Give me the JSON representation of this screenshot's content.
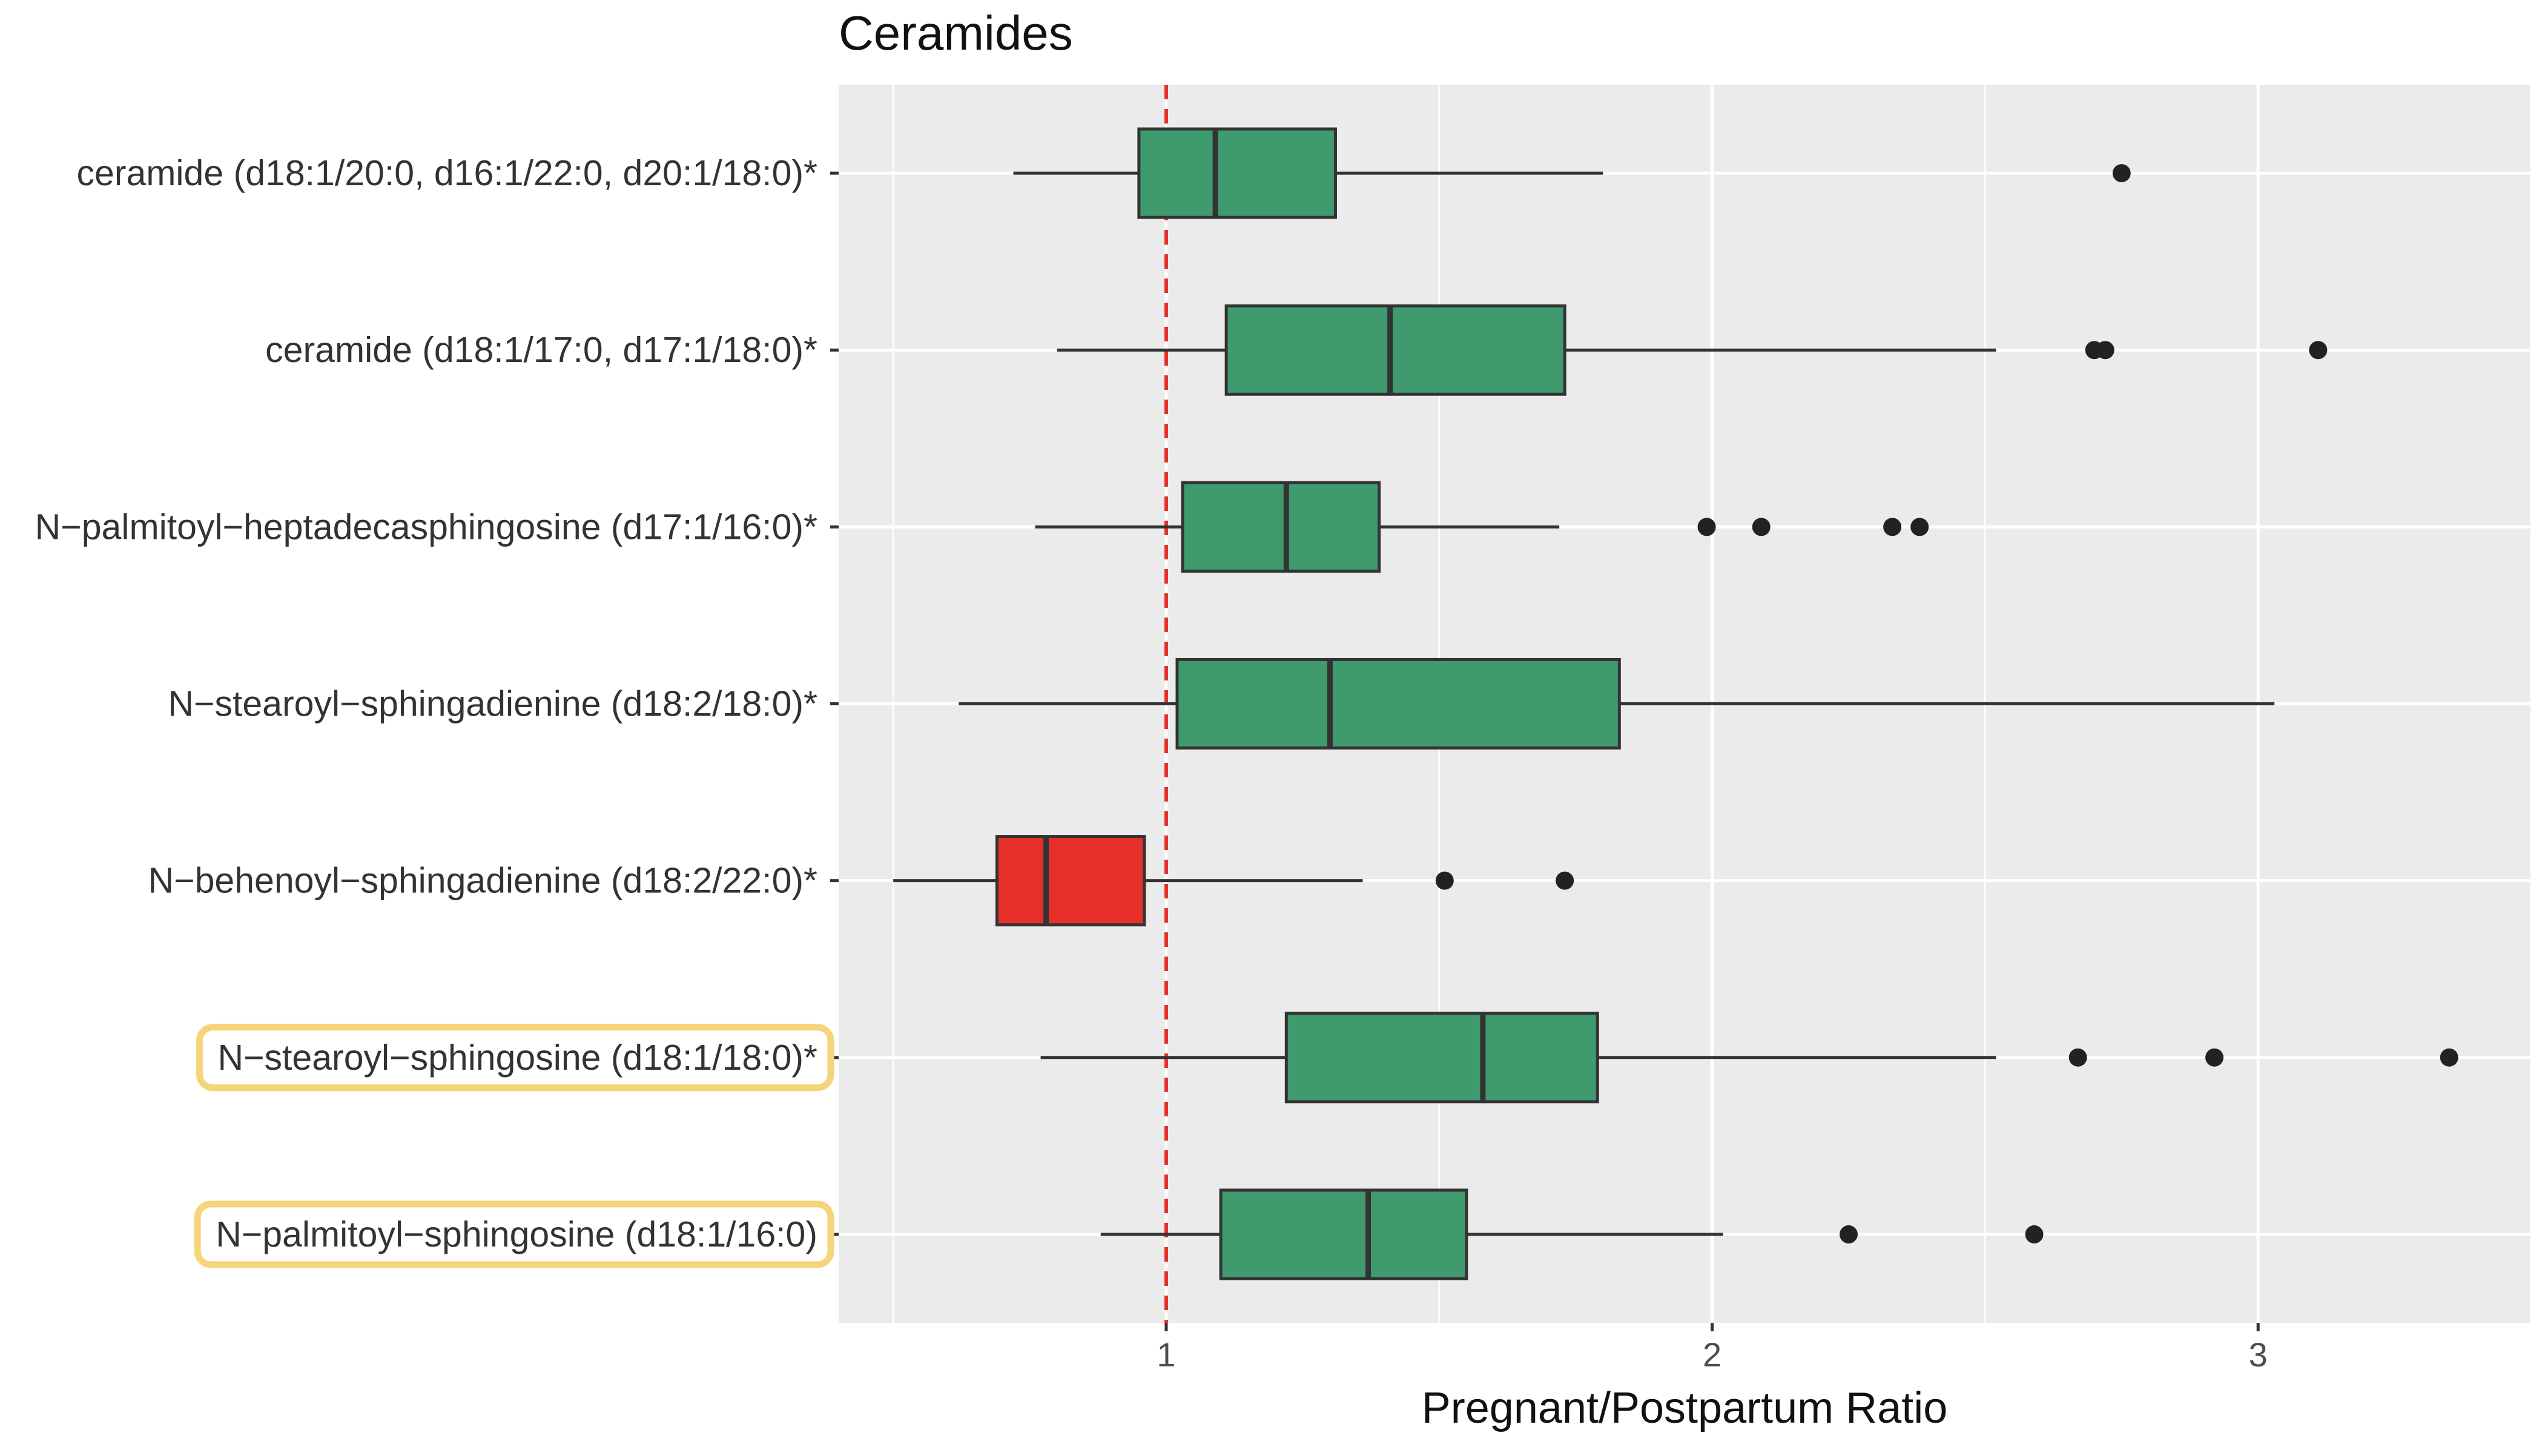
{
  "chart_data": {
    "type": "boxplot",
    "title": "Ceramides",
    "xlabel": "Pregnant/Postpartum Ratio",
    "ylabel": "",
    "xlim": [
      0.4,
      3.5
    ],
    "xticks": [
      1,
      2,
      3
    ],
    "x_tick_labels": [
      "1",
      "2",
      "3"
    ],
    "grid": true,
    "reference_line": {
      "x": 1,
      "style": "dashed",
      "color": "#e8302a"
    },
    "colors": {
      "increase": "#3f9a6e",
      "decrease": "#e8302a",
      "highlight": "#f5d57a",
      "panel": "#ebebeb"
    },
    "categories": [
      "ceramide (d18:1/20:0, d16:1/22:0, d20:1/18:0)*",
      "ceramide (d18:1/17:0, d17:1/18:0)*",
      "N−palmitoyl−heptadecasphingosine (d17:1/16:0)*",
      "N−stearoyl−sphingadienine (d18:2/18:0)*",
      "N−behenoyl−sphingadienine (d18:2/22:0)*",
      "N−stearoyl−sphingosine (d18:1/18:0)*",
      "N−palmitoyl−sphingosine (d18:1/16:0)"
    ],
    "boxes": [
      {
        "label": "ceramide (d18:1/20:0, d16:1/22:0, d20:1/18:0)*",
        "whisker_low": 0.72,
        "q1": 0.95,
        "median": 1.09,
        "q3": 1.31,
        "whisker_high": 1.8,
        "outliers": [
          2.75
        ],
        "color": "increase",
        "highlighted": false
      },
      {
        "label": "ceramide (d18:1/17:0, d17:1/18:0)*",
        "whisker_low": 0.8,
        "q1": 1.11,
        "median": 1.41,
        "q3": 1.73,
        "whisker_high": 2.52,
        "outliers": [
          2.7,
          2.72,
          3.11
        ],
        "color": "increase",
        "highlighted": false
      },
      {
        "label": "N−palmitoyl−heptadecasphingosine (d17:1/16:0)*",
        "whisker_low": 0.76,
        "q1": 1.03,
        "median": 1.22,
        "q3": 1.39,
        "whisker_high": 1.72,
        "outliers": [
          1.99,
          2.09,
          2.33,
          2.38
        ],
        "color": "increase",
        "highlighted": false
      },
      {
        "label": "N−stearoyl−sphingadienine (d18:2/18:0)*",
        "whisker_low": 0.62,
        "q1": 1.02,
        "median": 1.3,
        "q3": 1.83,
        "whisker_high": 3.03,
        "outliers": [],
        "color": "increase",
        "highlighted": false
      },
      {
        "label": "N−behenoyl−sphingadienine (d18:2/22:0)*",
        "whisker_low": 0.5,
        "q1": 0.69,
        "median": 0.78,
        "q3": 0.96,
        "whisker_high": 1.36,
        "outliers": [
          1.51,
          1.73
        ],
        "color": "decrease",
        "highlighted": false
      },
      {
        "label": "N−stearoyl−sphingosine (d18:1/18:0)*",
        "whisker_low": 0.77,
        "q1": 1.22,
        "median": 1.58,
        "q3": 1.79,
        "whisker_high": 2.52,
        "outliers": [
          2.67,
          2.92,
          3.35
        ],
        "color": "increase",
        "highlighted": true
      },
      {
        "label": "N−palmitoyl−sphingosine (d18:1/16:0)",
        "whisker_low": 0.88,
        "q1": 1.1,
        "median": 1.37,
        "q3": 1.55,
        "whisker_high": 2.02,
        "outliers": [
          2.25,
          2.59
        ],
        "color": "increase",
        "highlighted": true
      }
    ]
  }
}
